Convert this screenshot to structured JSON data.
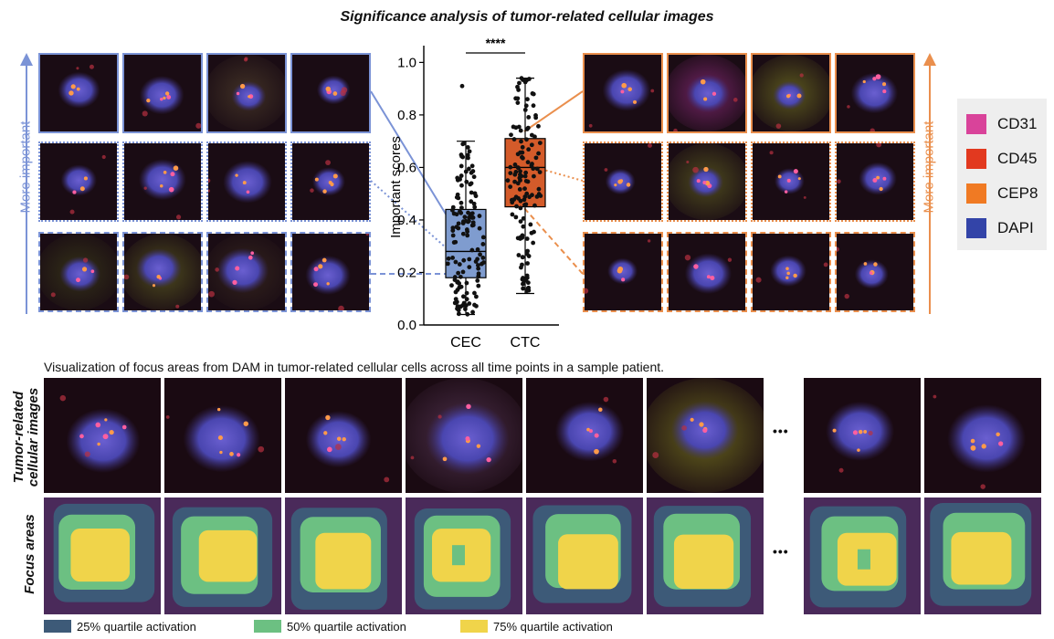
{
  "title": "Significance analysis of tumor-related cellular images",
  "left_arrow_label": "More important",
  "right_arrow_label": "More important",
  "colors": {
    "blue": "#7b93d6",
    "orange": "#ea8f4d",
    "box_blue": "#7f9ccf",
    "box_orange": "#d45b2a"
  },
  "markers": {
    "CD31": "#d9439a",
    "CD45": "#e2391f",
    "CEP8": "#f07a23",
    "DAPI": "#3344a8"
  },
  "legend": [
    {
      "label": "CD31",
      "color": "#d9439a"
    },
    {
      "label": "CD45",
      "color": "#e2391f"
    },
    {
      "label": "CEP8",
      "color": "#f07a23"
    },
    {
      "label": "DAPI",
      "color": "#3344a8"
    }
  ],
  "chart_data": {
    "type": "box",
    "title": "",
    "ylabel": "Important scores",
    "ylim": [
      0.0,
      1.05
    ],
    "yticks": [
      "0.0",
      "0.2",
      "0.4",
      "0.6",
      "0.8",
      "1.0"
    ],
    "categories": [
      "CEC",
      "CTC"
    ],
    "significance": "****",
    "series": [
      {
        "name": "CEC",
        "q1": 0.18,
        "median": 0.28,
        "q3": 0.44,
        "whisker_low": 0.04,
        "whisker_high": 0.7,
        "max_point": 0.91
      },
      {
        "name": "CTC",
        "q1": 0.45,
        "median": 0.6,
        "q3": 0.71,
        "whisker_low": 0.12,
        "whisker_high": 0.94,
        "max_point": 0.94
      }
    ]
  },
  "bottom": {
    "caption": "Visualization of focus areas from DAM in tumor-related cellular cells across all time points in a sample patient.",
    "row1_label": [
      "Tumor-related",
      "cellular images"
    ],
    "row2_label": "Focus areas",
    "ellipsis": "•••",
    "quartile_legend": [
      {
        "label": "25% quartile activation",
        "color": "#3d5a78"
      },
      {
        "label": "50% quartile activation",
        "color": "#6cc082"
      },
      {
        "label": "75% quartile activation",
        "color": "#f0d44a"
      }
    ]
  }
}
